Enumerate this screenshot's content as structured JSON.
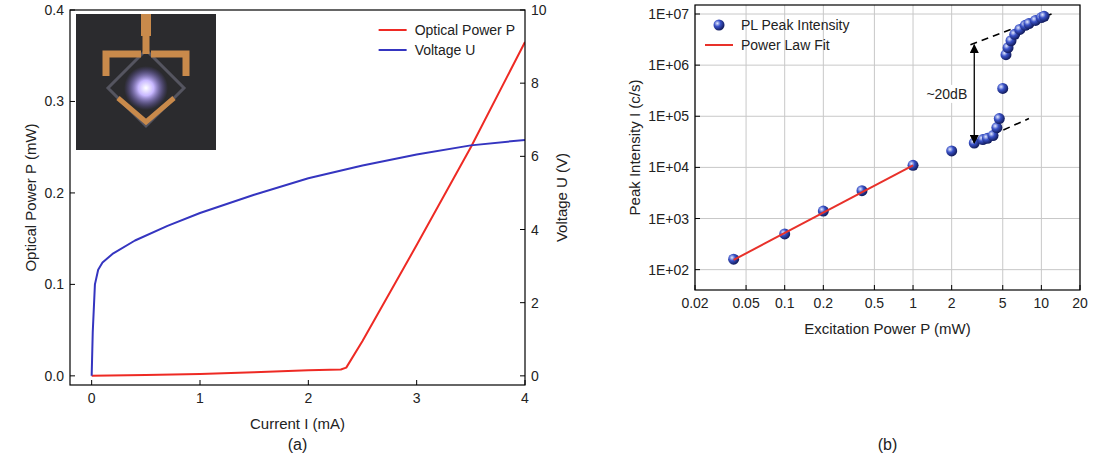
{
  "chart_data": [
    {
      "type": "line",
      "title": "(a)",
      "x_label": "Current I (mA)",
      "y_label": "Optical Power P (mW)",
      "y2_label": "Voltage U (V)",
      "xlim": [
        -0.2,
        4
      ],
      "xticks": [
        0,
        1,
        2,
        3,
        4
      ],
      "ylim": [
        -0.01,
        0.4
      ],
      "yticks": [
        {
          "value": 0,
          "label": "0.0"
        },
        {
          "value": 0.1,
          "label": "0.1"
        },
        {
          "value": 0.2,
          "label": "0.2"
        },
        {
          "value": 0.3,
          "label": "0.3"
        },
        {
          "value": 0.4,
          "label": "0.4"
        }
      ],
      "y2lim": [
        -0.25,
        10
      ],
      "y2ticks": [
        0,
        2,
        4,
        6,
        8,
        10
      ],
      "grid": false,
      "legend": "upper right",
      "series": [
        {
          "name": "Optical Power P",
          "color": "#ee2a24",
          "x": [
            0,
            0.5,
            1,
            1.5,
            2,
            2.3,
            2.35,
            2.5,
            3,
            3.5,
            4
          ],
          "values": [
            0,
            0.001,
            0.002,
            0.004,
            0.006,
            0.007,
            0.009,
            0.038,
            0.143,
            0.25,
            0.365
          ]
        },
        {
          "name": "Voltage U",
          "color": "#3535c0",
          "axis": "y2",
          "x": [
            0,
            0.01,
            0.03,
            0.06,
            0.1,
            0.2,
            0.4,
            0.7,
            1,
            1.5,
            2,
            2.5,
            3,
            3.5,
            4
          ],
          "values": [
            0,
            1.2,
            2.5,
            2.9,
            3.1,
            3.35,
            3.7,
            4.1,
            4.45,
            4.95,
            5.4,
            5.75,
            6.05,
            6.3,
            6.45
          ]
        }
      ]
    },
    {
      "type": "scatter",
      "title": "(b)",
      "x_label": "Excitation Power P (mW)",
      "y_label": "Peak Intensity I (c/s)",
      "log": true,
      "grid": true,
      "legend": "upper left",
      "xlim": [
        0.02,
        20
      ],
      "xticks": [
        0.02,
        0.05,
        0.1,
        0.2,
        0.5,
        1,
        2,
        5,
        10,
        20
      ],
      "ylim": [
        40,
        15000000
      ],
      "yticks": [
        {
          "value": 100,
          "label": "1E+02"
        },
        {
          "value": 1000,
          "label": "1E+03"
        },
        {
          "value": 10000,
          "label": "1E+04"
        },
        {
          "value": 100000,
          "label": "1E+05"
        },
        {
          "value": 1000000,
          "label": "1E+06"
        },
        {
          "value": 10000000,
          "label": "1E+07"
        }
      ],
      "series": [
        {
          "name": "PL Peak Intensity",
          "type": "scatter",
          "marker": "circle",
          "color": "#3a52c8",
          "x": [
            0.04,
            0.1,
            0.2,
            0.4,
            1,
            2,
            3,
            3.5,
            3.8,
            4.2,
            4.5,
            4.7,
            5,
            5.3,
            5.5,
            5.8,
            6.2,
            6.8,
            7.5,
            8,
            9,
            10,
            10.5
          ],
          "values": [
            160,
            500,
            1400,
            3500,
            11000,
            21000,
            30000,
            35000,
            37000,
            42000,
            60000,
            90000,
            350000,
            1600000,
            2200000,
            3000000,
            4000000,
            5000000,
            6000000,
            6500000,
            7500000,
            8500000,
            9000000
          ]
        },
        {
          "name": "Power Law Fit",
          "type": "line",
          "color": "#e8312a",
          "x": [
            0.04,
            1
          ],
          "values": [
            155,
            11000
          ]
        }
      ],
      "guides": [
        {
          "line_style": "dashed",
          "color": "#000000",
          "x": [
            2.8,
            12
          ],
          "values": [
            2500000,
            10000000
          ]
        },
        {
          "line_style": "dashed",
          "color": "#000000",
          "x": [
            2.8,
            8
          ],
          "values": [
            28000,
            90000
          ]
        }
      ],
      "annotations": [
        {
          "text": "~20dB",
          "x": 3,
          "y": [
            30000,
            2500000
          ]
        }
      ]
    }
  ]
}
